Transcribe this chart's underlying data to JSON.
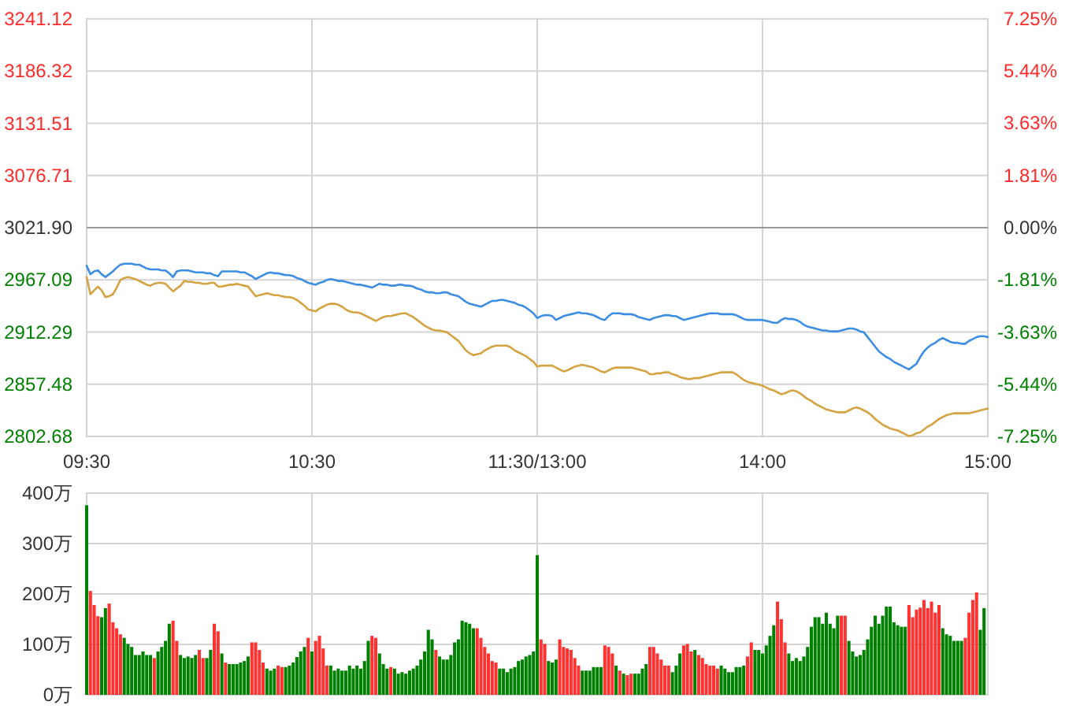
{
  "chart_data": [
    {
      "type": "line",
      "categories": [
        "09:30",
        null,
        null,
        null,
        null,
        null,
        null,
        null,
        null,
        null,
        null,
        null,
        null,
        null,
        null,
        null,
        null,
        null,
        null,
        null,
        null,
        null,
        null,
        null,
        null,
        null,
        null,
        null,
        null,
        null,
        null,
        null,
        null,
        null,
        null,
        null,
        null,
        null,
        null,
        null,
        null,
        null,
        null,
        null,
        null,
        null,
        null,
        null,
        null,
        null,
        null,
        null,
        null,
        null,
        null,
        null,
        null,
        null,
        null,
        null,
        "10:30",
        null,
        null,
        null,
        null,
        null,
        null,
        null,
        null,
        null,
        null,
        null,
        null,
        null,
        null,
        null,
        null,
        null,
        null,
        null,
        null,
        null,
        null,
        null,
        null,
        null,
        null,
        null,
        null,
        null,
        null,
        null,
        null,
        null,
        null,
        null,
        null,
        null,
        null,
        null,
        null,
        null,
        null,
        null,
        null,
        null,
        null,
        null,
        null,
        null,
        null,
        null,
        null,
        null,
        null,
        null,
        null,
        null,
        null,
        null,
        "11:30/13:00",
        null,
        null,
        null,
        null,
        null,
        null,
        null,
        null,
        null,
        null,
        null,
        null,
        null,
        null,
        null,
        null,
        null,
        null,
        null,
        null,
        null,
        null,
        null,
        null,
        null,
        null,
        null,
        null,
        null,
        null,
        null,
        null,
        null,
        null,
        null,
        null,
        null,
        null,
        null,
        null,
        null,
        null,
        null,
        null,
        null,
        null,
        null,
        null,
        null,
        null,
        null,
        null,
        null,
        null,
        null,
        null,
        null,
        null,
        null,
        "14:00",
        null,
        null,
        null,
        null,
        null,
        null,
        null,
        null,
        null,
        null,
        null,
        null,
        null,
        null,
        null,
        null,
        null,
        null,
        null,
        null,
        null,
        null,
        null,
        null,
        null,
        null,
        null,
        null,
        null,
        null,
        null,
        null,
        null,
        null,
        null,
        null,
        null,
        null,
        null,
        null,
        null,
        null,
        null,
        null,
        null,
        null,
        null,
        null,
        null,
        null,
        null,
        null,
        null,
        null,
        null,
        null,
        null,
        null,
        null,
        "15:00"
      ],
      "ylim": [
        2802.68,
        3241.12
      ],
      "yticks": [
        2802.68,
        2857.48,
        2912.29,
        2967.09,
        {
          "value": 3021.9,
          "label": "3021.90"
        },
        3076.71,
        3131.51,
        3186.32,
        3241.12
      ],
      "y2lim": [
        -7.25,
        7.25
      ],
      "y2ticks": [
        {
          "value": -7.25,
          "label": "-7.25%"
        },
        {
          "value": -5.44,
          "label": "-5.44%"
        },
        {
          "value": -3.63,
          "label": "-3.63%"
        },
        {
          "value": -1.81,
          "label": "-1.81%"
        },
        {
          "value": 0,
          "label": "0.00%"
        },
        {
          "value": 1.81,
          "label": "1.81%"
        },
        {
          "value": 3.63,
          "label": "3.63%"
        },
        {
          "value": 5.44,
          "label": "5.44%"
        },
        {
          "value": 7.25,
          "label": "7.25%"
        }
      ],
      "grid": true,
      "ref_lines": [
        {
          "axis": "y",
          "value": 3021.9,
          "color": "#999999"
        }
      ],
      "series": [
        {
          "color": "#3d8ee3",
          "values": [
            2982,
            2973,
            2976,
            2977,
            2973,
            2970,
            2973,
            2976,
            2980,
            2983,
            2984,
            2984,
            2984,
            2983,
            2983,
            2981,
            2979,
            2978,
            2978,
            2978,
            2977,
            2977,
            2974,
            2970,
            2976,
            2977,
            2977,
            2977,
            2976,
            2975,
            2975,
            2975,
            2974,
            2974,
            2972,
            2971,
            2976,
            2976,
            2976,
            2976,
            2976,
            2975,
            2975,
            2973,
            2971,
            2968,
            2970,
            2972,
            2974,
            2975,
            2974,
            2974,
            2973,
            2972,
            2972,
            2971,
            2969,
            2968,
            2966,
            2964,
            2963,
            2962,
            2964,
            2965,
            2967,
            2968,
            2967,
            2966,
            2966,
            2965,
            2964,
            2963,
            2962,
            2962,
            2961,
            2960,
            2959,
            2961,
            2963,
            2962,
            2962,
            2961,
            2961,
            2962,
            2962,
            2961,
            2961,
            2960,
            2958,
            2957,
            2955,
            2954,
            2954,
            2953,
            2953,
            2954,
            2954,
            2952,
            2951,
            2950,
            2947,
            2944,
            2942,
            2941,
            2940,
            2939,
            2941,
            2943,
            2945,
            2945,
            2946,
            2946,
            2945,
            2944,
            2943,
            2941,
            2940,
            2938,
            2935,
            2932,
            2927,
            2929,
            2930,
            2930,
            2929,
            2925,
            2927,
            2929,
            2930,
            2931,
            2932,
            2933,
            2932,
            2932,
            2931,
            2930,
            2928,
            2926,
            2925,
            2929,
            2932,
            2932,
            2932,
            2931,
            2931,
            2931,
            2930,
            2928,
            2927,
            2926,
            2925,
            2927,
            2928,
            2929,
            2930,
            2930,
            2929,
            2929,
            2927,
            2925,
            2926,
            2927,
            2928,
            2929,
            2930,
            2931,
            2932,
            2932,
            2932,
            2931,
            2931,
            2931,
            2931,
            2930,
            2928,
            2926,
            2925,
            2925,
            2925,
            2925,
            2925,
            2924,
            2923,
            2922,
            2922,
            2925,
            2927,
            2926,
            2926,
            2925,
            2923,
            2920,
            2918,
            2917,
            2916,
            2915,
            2914,
            2914,
            2913,
            2913,
            2913,
            2914,
            2915,
            2916,
            2916,
            2915,
            2913,
            2912,
            2907,
            2902,
            2897,
            2892,
            2889,
            2886,
            2884,
            2881,
            2879,
            2877,
            2875,
            2873,
            2876,
            2879,
            2886,
            2892,
            2896,
            2899,
            2901,
            2904,
            2906,
            2904,
            2902,
            2901,
            2901,
            2900,
            2900,
            2903,
            2905,
            2907,
            2908,
            2908,
            2907
          ]
        },
        {
          "color": "#d4a343",
          "values": [
            2970,
            2952,
            2956,
            2960,
            2956,
            2949,
            2950,
            2952,
            2959,
            2967,
            2969,
            2970,
            2969,
            2968,
            2966,
            2964,
            2962,
            2961,
            2963,
            2964,
            2964,
            2963,
            2959,
            2955,
            2958,
            2961,
            2966,
            2965,
            2965,
            2964,
            2964,
            2963,
            2963,
            2964,
            2964,
            2960,
            2960,
            2961,
            2962,
            2962,
            2963,
            2962,
            2961,
            2960,
            2955,
            2950,
            2951,
            2952,
            2953,
            2952,
            2951,
            2951,
            2950,
            2949,
            2949,
            2948,
            2946,
            2943,
            2940,
            2936,
            2935,
            2934,
            2937,
            2939,
            2941,
            2942,
            2942,
            2941,
            2939,
            2936,
            2934,
            2933,
            2933,
            2932,
            2930,
            2928,
            2926,
            2924,
            2926,
            2928,
            2929,
            2929,
            2930,
            2931,
            2932,
            2932,
            2930,
            2928,
            2925,
            2922,
            2919,
            2917,
            2915,
            2914,
            2914,
            2913,
            2912,
            2909,
            2906,
            2903,
            2898,
            2893,
            2890,
            2888,
            2889,
            2890,
            2893,
            2895,
            2897,
            2898,
            2898,
            2898,
            2898,
            2896,
            2893,
            2891,
            2889,
            2887,
            2884,
            2881,
            2876,
            2877,
            2877,
            2877,
            2877,
            2875,
            2873,
            2871,
            2872,
            2874,
            2876,
            2877,
            2878,
            2877,
            2876,
            2875,
            2873,
            2871,
            2870,
            2872,
            2874,
            2875,
            2875,
            2875,
            2875,
            2875,
            2874,
            2873,
            2872,
            2871,
            2868,
            2868,
            2869,
            2869,
            2870,
            2870,
            2868,
            2867,
            2865,
            2864,
            2863,
            2863,
            2864,
            2864,
            2865,
            2866,
            2867,
            2868,
            2869,
            2870,
            2870,
            2870,
            2870,
            2868,
            2865,
            2862,
            2860,
            2859,
            2858,
            2857,
            2856,
            2854,
            2852,
            2851,
            2849,
            2847,
            2848,
            2850,
            2851,
            2850,
            2848,
            2845,
            2842,
            2840,
            2837,
            2835,
            2833,
            2831,
            2830,
            2829,
            2828,
            2828,
            2828,
            2830,
            2832,
            2833,
            2832,
            2830,
            2828,
            2825,
            2821,
            2818,
            2815,
            2813,
            2811,
            2810,
            2809,
            2807,
            2805,
            2803,
            2804,
            2806,
            2807,
            2810,
            2813,
            2815,
            2818,
            2821,
            2823,
            2825,
            2826,
            2827,
            2827,
            2827,
            2827,
            2827,
            2828,
            2829,
            2830,
            2831,
            2832
          ]
        }
      ]
    },
    {
      "type": "bar",
      "categories": [
        null,
        null,
        null,
        null,
        null,
        null,
        null,
        null,
        null,
        null,
        null,
        null,
        null,
        null,
        null,
        null,
        null,
        null,
        null,
        null,
        null,
        null,
        null,
        null,
        null,
        null,
        null,
        null,
        null,
        null,
        null,
        null,
        null,
        null,
        null,
        null,
        null,
        null,
        null,
        null,
        null,
        null,
        null,
        null,
        null,
        null,
        null,
        null,
        null,
        null,
        null,
        null,
        null,
        null,
        null,
        null,
        null,
        null,
        null,
        null,
        null,
        null,
        null,
        null,
        null,
        null,
        null,
        null,
        null,
        null,
        null,
        null,
        null,
        null,
        null,
        null,
        null,
        null,
        null,
        null,
        null,
        null,
        null,
        null,
        null,
        null,
        null,
        null,
        null,
        null,
        null,
        null,
        null,
        null,
        null,
        null,
        null,
        null,
        null,
        null,
        null,
        null,
        null,
        null,
        null,
        null,
        null,
        null,
        null,
        null,
        null,
        null,
        null,
        null,
        null,
        null,
        null,
        null,
        null,
        null,
        null,
        null,
        null,
        null,
        null,
        null,
        null,
        null,
        null,
        null,
        null,
        null,
        null,
        null,
        null,
        null,
        null,
        null,
        null,
        null,
        null,
        null,
        null,
        null,
        null,
        null,
        null,
        null,
        null,
        null,
        null,
        null,
        null,
        null,
        null,
        null,
        null,
        null,
        null,
        null,
        null,
        null,
        null,
        null,
        null,
        null,
        null,
        null,
        null,
        null,
        null,
        null,
        null,
        null,
        null,
        null,
        null,
        null,
        null,
        null,
        null,
        null,
        null,
        null,
        null,
        null,
        null,
        null,
        null,
        null,
        null,
        null,
        null,
        null,
        null,
        null,
        null,
        null,
        null,
        null,
        null,
        null,
        null,
        null,
        null,
        null,
        null,
        null,
        null,
        null,
        null,
        null,
        null,
        null,
        null,
        null,
        null,
        null,
        null,
        null,
        null,
        null,
        null,
        null,
        null,
        null,
        null,
        null,
        null,
        null,
        null,
        null,
        null,
        null,
        null,
        null,
        null,
        null,
        null,
        null,
        null
      ],
      "ylim": [
        0,
        400
      ],
      "yticks": [
        {
          "value": 0,
          "label": "0万"
        },
        {
          "value": 100,
          "label": "100万"
        },
        {
          "value": 200,
          "label": "200万"
        },
        {
          "value": 300,
          "label": "300万"
        },
        {
          "value": 400,
          "label": "400万"
        }
      ],
      "grid": true,
      "values": [
        376,
        206,
        178,
        156,
        154,
        172,
        181,
        144,
        132,
        120,
        113,
        101,
        95,
        79,
        79,
        86,
        79,
        79,
        73,
        86,
        95,
        107,
        141,
        147,
        107,
        79,
        73,
        76,
        73,
        79,
        89,
        73,
        73,
        89,
        141,
        126,
        82,
        64,
        61,
        61,
        61,
        64,
        67,
        76,
        104,
        104,
        89,
        64,
        52,
        48,
        52,
        58,
        55,
        55,
        58,
        64,
        75,
        86,
        95,
        113,
        86,
        107,
        117,
        92,
        58,
        58,
        48,
        52,
        48,
        48,
        58,
        52,
        58,
        52,
        67,
        107,
        117,
        113,
        82,
        61,
        52,
        55,
        52,
        42,
        45,
        42,
        48,
        52,
        58,
        70,
        86,
        129,
        110,
        89,
        76,
        70,
        70,
        79,
        104,
        110,
        147,
        144,
        141,
        132,
        132,
        113,
        95,
        82,
        67,
        64,
        52,
        52,
        45,
        52,
        55,
        67,
        70,
        76,
        79,
        86,
        277,
        110,
        101,
        67,
        64,
        70,
        110,
        95,
        92,
        89,
        73,
        58,
        48,
        48,
        48,
        55,
        55,
        55,
        98,
        95,
        82,
        58,
        48,
        42,
        39,
        42,
        42,
        42,
        52,
        61,
        95,
        95,
        82,
        70,
        58,
        58,
        45,
        58,
        82,
        98,
        101,
        86,
        89,
        79,
        73,
        61,
        58,
        58,
        52,
        58,
        52,
        45,
        45,
        55,
        55,
        58,
        76,
        104,
        89,
        89,
        82,
        98,
        117,
        138,
        185,
        150,
        104,
        82,
        67,
        73,
        67,
        76,
        95,
        135,
        154,
        154,
        141,
        163,
        141,
        132,
        157,
        157,
        157,
        107,
        86,
        76,
        79,
        89,
        110,
        135,
        157,
        141,
        157,
        175,
        175,
        144,
        138,
        135,
        135,
        178,
        154,
        169,
        173,
        188,
        172,
        185,
        163,
        178,
        132,
        120,
        117,
        107,
        107,
        107,
        113,
        163,
        188,
        203,
        129,
        172,
        null
      ],
      "colors": [
        "#008000",
        "#ff3232",
        "#ff3232",
        "#ff3232",
        "#008000",
        "#008000",
        "#ff3232",
        "#ff3232",
        "#ff3232",
        "#ff3232",
        "#008000",
        "#008000",
        "#008000",
        "#008000",
        "#008000",
        "#008000",
        "#008000",
        "#008000",
        "#ff3232",
        "#008000",
        "#008000",
        "#008000",
        "#008000",
        "#ff3232",
        "#ff3232",
        "#008000",
        "#008000",
        "#008000",
        "#008000",
        "#008000",
        "#ff3232",
        "#ff3232",
        "#008000",
        "#008000",
        "#ff3232",
        "#ff3232",
        "#008000",
        "#ff3232",
        "#008000",
        "#008000",
        "#008000",
        "#008000",
        "#008000",
        "#008000",
        "#ff3232",
        "#ff3232",
        "#ff3232",
        "#ff3232",
        "#008000",
        "#008000",
        "#008000",
        "#ff3232",
        "#ff3232",
        "#008000",
        "#008000",
        "#008000",
        "#008000",
        "#008000",
        "#008000",
        "#ff3232",
        "#008000",
        "#ff3232",
        "#ff3232",
        "#ff3232",
        "#ff3232",
        "#008000",
        "#008000",
        "#008000",
        "#008000",
        "#008000",
        "#008000",
        "#008000",
        "#008000",
        "#008000",
        "#008000",
        "#008000",
        "#ff3232",
        "#ff3232",
        "#008000",
        "#008000",
        "#008000",
        "#ff3232",
        "#008000",
        "#008000",
        "#008000",
        "#008000",
        "#008000",
        "#008000",
        "#008000",
        "#008000",
        "#008000",
        "#008000",
        "#008000",
        "#ff3232",
        "#008000",
        "#008000",
        "#008000",
        "#008000",
        "#008000",
        "#008000",
        "#008000",
        "#008000",
        "#008000",
        "#008000",
        "#ff3232",
        "#ff3232",
        "#ff3232",
        "#ff3232",
        "#ff3232",
        "#ff3232",
        "#008000",
        "#008000",
        "#008000",
        "#008000",
        "#008000",
        "#008000",
        "#008000",
        "#008000",
        "#008000",
        "#008000",
        "#008000",
        "#ff3232",
        "#ff3232",
        "#008000",
        "#008000",
        "#008000",
        "#ff3232",
        "#ff3232",
        "#ff3232",
        "#ff3232",
        "#ff3232",
        "#ff3232",
        "#008000",
        "#008000",
        "#008000",
        "#008000",
        "#008000",
        "#008000",
        "#ff3232",
        "#ff3232",
        "#ff3232",
        "#008000",
        "#ff3232",
        "#008000",
        "#ff3232",
        "#ff3232",
        "#008000",
        "#008000",
        "#008000",
        "#008000",
        "#ff3232",
        "#ff3232",
        "#ff3232",
        "#ff3232",
        "#ff3232",
        "#ff3232",
        "#008000",
        "#008000",
        "#008000",
        "#ff3232",
        "#ff3232",
        "#ff3232",
        "#008000",
        "#ff3232",
        "#ff3232",
        "#ff3232",
        "#ff3232",
        "#ff3232",
        "#ff3232",
        "#008000",
        "#008000",
        "#008000",
        "#008000",
        "#008000",
        "#008000",
        "#008000",
        "#ff3232",
        "#ff3232",
        "#008000",
        "#008000",
        "#008000",
        "#008000",
        "#008000",
        "#008000",
        "#ff3232",
        "#ff3232",
        "#ff3232",
        "#008000",
        "#008000",
        "#008000",
        "#008000",
        "#008000",
        "#008000",
        "#008000",
        "#008000",
        "#008000",
        "#008000",
        "#008000",
        "#008000",
        "#008000",
        "#008000",
        "#ff3232",
        "#ff3232",
        "#008000",
        "#008000",
        "#008000",
        "#008000",
        "#008000",
        "#008000",
        "#008000",
        "#008000",
        "#008000",
        "#008000",
        "#008000",
        "#008000",
        "#008000",
        "#008000",
        "#008000",
        "#008000",
        "#ff3232",
        "#ff3232",
        "#ff3232",
        "#ff3232",
        "#ff3232",
        "#ff3232",
        "#ff3232",
        "#ff3232",
        "#ff3232",
        "#008000",
        "#008000",
        "#008000",
        "#008000",
        "#008000",
        "#008000",
        "#ff3232",
        "#ff3232",
        "#ff3232",
        "#ff3232",
        "#008000",
        "#008000",
        null
      ]
    }
  ]
}
